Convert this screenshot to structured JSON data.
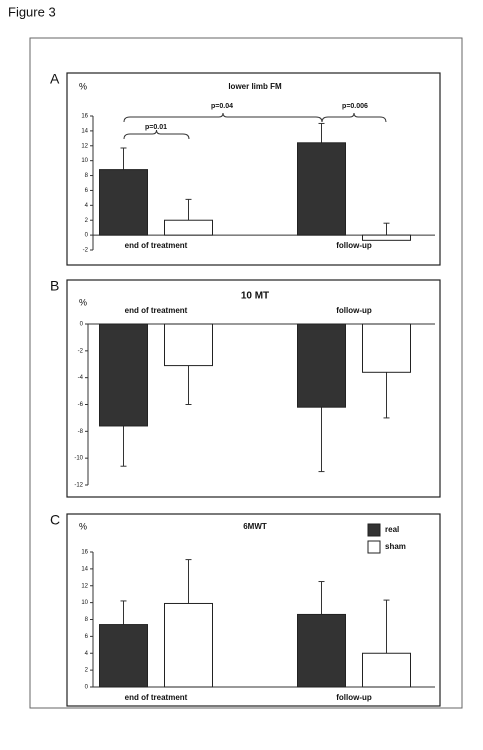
{
  "figure_title": "Figure 3",
  "chart_data": [
    {
      "type": "bar",
      "panel_label": "A",
      "title": "lower limb FM",
      "y_label": "%",
      "categories": [
        "end of treatment",
        "follow-up"
      ],
      "series": [
        {
          "color": "#333333",
          "values": [
            8.8,
            12.4
          ],
          "errors": [
            2.9,
            2.6
          ]
        },
        {
          "color": "#ffffff",
          "values": [
            2.0,
            -0.7
          ],
          "errors": [
            2.8,
            2.3
          ]
        }
      ],
      "error_direction": "up",
      "ylim": [
        -2,
        16
      ],
      "yticks": [
        -2,
        0,
        2,
        4,
        6,
        8,
        10,
        12,
        14,
        16
      ],
      "grid": false,
      "legend": false,
      "annotations": [
        "p=0.01",
        "p=0.04",
        "p=0.006"
      ]
    },
    {
      "type": "bar",
      "panel_label": "B",
      "title": "10 MT",
      "y_label": "%",
      "categories": [
        "end of treatment",
        "follow-up"
      ],
      "series": [
        {
          "color": "#333333",
          "values": [
            -7.6,
            -6.2
          ],
          "errors": [
            3.0,
            4.8
          ]
        },
        {
          "color": "#ffffff",
          "values": [
            -3.1,
            -3.6
          ],
          "errors": [
            2.9,
            3.4
          ]
        }
      ],
      "error_direction": "down",
      "ylim": [
        -12,
        0
      ],
      "yticks": [
        0,
        -2,
        -4,
        -6,
        -8,
        -10,
        -12
      ],
      "grid": false,
      "legend": false
    },
    {
      "type": "bar",
      "panel_label": "C",
      "title": "6MWT",
      "y_label": "%",
      "categories": [
        "end of treatment",
        "follow-up"
      ],
      "series": [
        {
          "name": "real",
          "color": "#333333",
          "values": [
            7.4,
            8.6
          ],
          "errors": [
            2.8,
            3.9
          ]
        },
        {
          "name": "sham",
          "color": "#ffffff",
          "values": [
            9.9,
            4.0
          ],
          "errors": [
            5.2,
            6.3
          ]
        }
      ],
      "error_direction": "up",
      "ylim": [
        0,
        16
      ],
      "yticks": [
        0,
        2,
        4,
        6,
        8,
        10,
        12,
        14,
        16
      ],
      "grid": false,
      "legend": true
    }
  ]
}
